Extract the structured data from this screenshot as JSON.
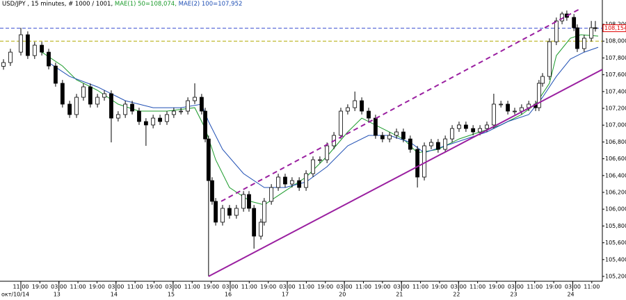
{
  "chart_data": {
    "type": "candlestick",
    "title_parts": [
      {
        "text": "USD/JPY , 15 minutes, # 1000 / 1001,",
        "color": "#000000"
      },
      {
        "text": "MAE(1) 50=108,074,",
        "color": "#1a9a2a"
      },
      {
        "text": "MAE(2) 100=107,952",
        "color": "#1f4fb4"
      }
    ],
    "xlim": [
      -8.77,
      244.44
    ],
    "ylim": [
      105.142,
      108.407
    ],
    "yticks": [
      {
        "value": 105.2,
        "label": "105,200"
      },
      {
        "value": 105.4,
        "label": "105,400"
      },
      {
        "value": 105.6,
        "label": "105,600"
      },
      {
        "value": 105.8,
        "label": "105,800"
      },
      {
        "value": 106.0,
        "label": "106,000"
      },
      {
        "value": 106.2,
        "label": "106,200"
      },
      {
        "value": 106.4,
        "label": "106,400"
      },
      {
        "value": 106.6,
        "label": "106,600"
      },
      {
        "value": 106.8,
        "label": "106,800"
      },
      {
        "value": 107.0,
        "label": "107,000"
      },
      {
        "value": 107.2,
        "label": "107,200"
      },
      {
        "value": 107.4,
        "label": "107,400"
      },
      {
        "value": 107.6,
        "label": "107,600"
      },
      {
        "value": 107.8,
        "label": "107,800"
      },
      {
        "value": 108.0,
        "label": "108,000"
      },
      {
        "value": 108.2,
        "label": "108,200"
      }
    ],
    "xticks": [
      {
        "value": 0,
        "label": "11:00"
      },
      {
        "value": 8,
        "label": "19:00"
      },
      {
        "value": 16,
        "label": "03:00"
      },
      {
        "value": 24,
        "label": "11:00"
      },
      {
        "value": 32,
        "label": "19:00"
      },
      {
        "value": 40,
        "label": "03:00"
      },
      {
        "value": 48,
        "label": "11:00"
      },
      {
        "value": 56,
        "label": "19:00"
      },
      {
        "value": 64,
        "label": "03:00"
      },
      {
        "value": 72,
        "label": "11:00"
      },
      {
        "value": 80,
        "label": "19:00"
      },
      {
        "value": 88,
        "label": "03:00"
      },
      {
        "value": 96,
        "label": "11:00"
      },
      {
        "value": 104,
        "label": "19:00"
      },
      {
        "value": 112,
        "label": "03:00"
      },
      {
        "value": 120,
        "label": "11:00"
      },
      {
        "value": 128,
        "label": "19:00"
      },
      {
        "value": 136,
        "label": "03:00"
      },
      {
        "value": 144,
        "label": "11:00"
      },
      {
        "value": 152,
        "label": "19:00"
      },
      {
        "value": 160,
        "label": "03:00"
      },
      {
        "value": 168,
        "label": "11:00"
      },
      {
        "value": 176,
        "label": "19:00"
      },
      {
        "value": 184,
        "label": "03:00"
      },
      {
        "value": 192,
        "label": "11:00"
      },
      {
        "value": 200,
        "label": "19:00"
      },
      {
        "value": 208,
        "label": "03:00"
      },
      {
        "value": 216,
        "label": "11:00"
      },
      {
        "value": 224,
        "label": "19:00"
      },
      {
        "value": 232,
        "label": "03:00"
      },
      {
        "value": 240,
        "label": "11:00"
      }
    ],
    "date_labels": [
      {
        "value": 0,
        "label": "окт/10/14"
      },
      {
        "value": 16,
        "label": "13"
      },
      {
        "value": 40,
        "label": "14"
      },
      {
        "value": 64,
        "label": "15"
      },
      {
        "value": 88,
        "label": "16"
      },
      {
        "value": 112,
        "label": "17"
      },
      {
        "value": 136,
        "label": "20"
      },
      {
        "value": 160,
        "label": "21"
      },
      {
        "value": 184,
        "label": "22"
      },
      {
        "value": 208,
        "label": "23"
      },
      {
        "value": 232,
        "label": "24"
      }
    ],
    "candles": {
      "up_color": "#ffffff",
      "down_color": "#000000",
      "x": [
        -7.3,
        -4.4,
        0,
        2.9,
        5.8,
        8.8,
        11.7,
        14.6,
        17.5,
        20.5,
        23.4,
        26.3,
        29.2,
        32.2,
        35.1,
        38.0,
        40.9,
        43.9,
        46.8,
        49.7,
        52.6,
        55.6,
        58.5,
        61.4,
        64.3,
        67.3,
        70.2,
        73.1,
        76.0,
        77.5,
        78.9,
        80.4,
        81.9,
        84.8,
        87.7,
        90.6,
        93.6,
        95.9,
        98.0,
        100.9,
        102.3,
        105.3,
        108.2,
        111.1,
        114.0,
        117.0,
        119.9,
        122.8,
        125.7,
        128.7,
        131.6,
        134.5,
        137.4,
        140.4,
        143.3,
        146.2,
        149.1,
        152.0,
        155.0,
        157.9,
        160.8,
        163.7,
        166.7,
        169.6,
        172.5,
        175.4,
        178.4,
        181.3,
        184.2,
        187.1,
        190.1,
        193.0,
        195.9,
        198.8,
        201.8,
        204.7,
        207.6,
        210.5,
        213.5,
        216.4,
        217.8,
        219.3,
        222.2,
        225.1,
        227.5,
        229.5,
        232.5,
        233.9,
        236.8,
        239.8,
        241.5
      ],
      "open": [
        107.7,
        107.745,
        107.869,
        108.076,
        107.828,
        107.952,
        107.869,
        107.704,
        107.498,
        107.25,
        107.126,
        107.332,
        107.456,
        107.25,
        107.332,
        107.374,
        107.084,
        107.126,
        107.25,
        107.167,
        107.043,
        107.002,
        107.084,
        107.043,
        107.126,
        107.167,
        107.167,
        107.291,
        107.332,
        107.167,
        106.836,
        106.34,
        106.093,
        105.845,
        106.01,
        105.927,
        106.01,
        106.175,
        106.01,
        105.679,
        105.845,
        106.093,
        106.258,
        106.382,
        106.299,
        106.34,
        106.258,
        106.423,
        106.588,
        106.588,
        106.754,
        106.878,
        107.167,
        107.208,
        107.291,
        107.167,
        107.084,
        106.878,
        106.836,
        106.878,
        106.919,
        106.836,
        106.712,
        106.382,
        106.754,
        106.795,
        106.712,
        106.836,
        106.96,
        107.002,
        106.96,
        106.919,
        106.96,
        107.002,
        107.25,
        107.25,
        107.167,
        107.167,
        107.208,
        107.25,
        107.208,
        107.498,
        107.58,
        107.993,
        108.241,
        108.324,
        108.283,
        108.159,
        107.911,
        108.035,
        108.159
      ],
      "high": [
        107.785,
        107.909,
        108.159,
        108.116,
        107.992,
        107.992,
        107.909,
        107.744,
        107.538,
        107.29,
        107.372,
        107.496,
        107.496,
        107.372,
        107.414,
        107.414,
        107.166,
        107.29,
        107.29,
        107.207,
        107.083,
        107.124,
        107.124,
        107.166,
        107.207,
        107.207,
        107.331,
        107.498,
        107.372,
        107.207,
        106.876,
        106.38,
        106.133,
        106.05,
        106.05,
        106.05,
        106.215,
        106.215,
        106.05,
        105.885,
        106.133,
        106.298,
        106.422,
        106.422,
        106.38,
        106.38,
        106.463,
        106.628,
        106.628,
        106.794,
        106.918,
        107.207,
        107.248,
        107.4,
        107.331,
        107.207,
        107.124,
        106.918,
        106.918,
        106.959,
        106.959,
        106.876,
        106.752,
        106.794,
        106.835,
        106.835,
        106.876,
        107.0,
        107.042,
        107.042,
        107.0,
        107.0,
        107.042,
        107.374,
        107.29,
        107.29,
        107.207,
        107.248,
        107.29,
        107.29,
        107.538,
        107.62,
        108.033,
        108.281,
        108.35,
        108.364,
        108.323,
        108.199,
        108.075,
        108.24,
        108.24
      ],
      "low": [
        107.66,
        107.705,
        107.829,
        107.788,
        107.788,
        107.829,
        107.664,
        107.458,
        107.21,
        107.086,
        107.086,
        107.292,
        107.21,
        107.21,
        107.292,
        106.795,
        107.044,
        107.086,
        107.127,
        107.003,
        106.754,
        106.962,
        107.003,
        107.003,
        107.086,
        107.127,
        107.127,
        107.251,
        107.127,
        106.796,
        105.2,
        106.053,
        105.805,
        105.805,
        105.887,
        105.887,
        105.97,
        105.97,
        105.53,
        105.639,
        105.805,
        106.053,
        106.218,
        106.259,
        106.259,
        106.218,
        106.218,
        106.383,
        106.548,
        106.548,
        106.714,
        106.838,
        107.127,
        107.168,
        107.127,
        107.044,
        106.838,
        106.796,
        106.796,
        106.838,
        106.796,
        106.672,
        106.258,
        106.342,
        106.714,
        106.672,
        106.672,
        106.796,
        106.92,
        106.92,
        106.879,
        106.879,
        106.92,
        106.962,
        107.21,
        107.127,
        107.127,
        107.127,
        107.168,
        107.168,
        107.168,
        107.458,
        107.54,
        107.953,
        108.201,
        108.243,
        108.119,
        107.871,
        107.871,
        107.995,
        108.114
      ],
      "close": [
        107.745,
        107.869,
        108.076,
        107.828,
        107.952,
        107.869,
        107.704,
        107.498,
        107.25,
        107.126,
        107.332,
        107.456,
        107.25,
        107.332,
        107.374,
        107.084,
        107.126,
        107.25,
        107.167,
        107.043,
        107.002,
        107.084,
        107.043,
        107.126,
        107.167,
        107.167,
        107.291,
        107.332,
        107.167,
        106.836,
        106.34,
        106.093,
        105.845,
        106.01,
        105.927,
        106.01,
        106.175,
        106.01,
        105.679,
        105.845,
        106.093,
        106.258,
        106.382,
        106.299,
        106.34,
        106.258,
        106.423,
        106.588,
        106.588,
        106.754,
        106.878,
        107.167,
        107.208,
        107.291,
        107.167,
        107.084,
        106.878,
        106.836,
        106.878,
        106.919,
        106.836,
        106.712,
        106.382,
        106.754,
        106.795,
        106.712,
        106.836,
        106.96,
        107.002,
        106.96,
        106.919,
        106.96,
        107.002,
        107.25,
        107.25,
        107.167,
        107.167,
        107.208,
        107.25,
        107.208,
        107.498,
        107.58,
        107.993,
        108.241,
        108.324,
        108.283,
        108.159,
        107.911,
        108.035,
        108.159,
        108.154
      ]
    },
    "lines": [
      {
        "color": "#1a9a2a",
        "x": [
          8.8,
          17.5,
          23.4,
          32.2,
          40.9,
          49.7,
          61.4,
          73.1,
          77.5,
          81.9,
          87.7,
          96.5,
          102.3,
          111.1,
          119.9,
          128.7,
          137.4,
          143.3,
          152.0,
          160.8,
          166.7,
          175.4,
          184.2,
          193.0,
          201.8,
          210.5,
          216.4,
          222.2,
          225.1,
          231.0,
          235.4,
          242.7
        ],
        "values": [
          107.869,
          107.704,
          107.539,
          107.415,
          107.25,
          107.167,
          107.167,
          107.208,
          106.96,
          106.588,
          106.258,
          106.093,
          106.051,
          106.217,
          106.382,
          106.63,
          106.919,
          107.084,
          106.96,
          106.836,
          106.671,
          106.712,
          106.836,
          106.919,
          107.002,
          107.126,
          107.25,
          107.498,
          107.828,
          108.035,
          108.076,
          108.06
        ]
      },
      {
        "color": "#1f4fb4",
        "x": [
          11.7,
          20.5,
          32.2,
          43.9,
          55.6,
          67.3,
          76.0,
          78.9,
          84.8,
          93.6,
          102.3,
          111.1,
          119.9,
          128.7,
          137.4,
          146.2,
          155.0,
          163.7,
          169.6,
          178.4,
          187.1,
          195.9,
          204.7,
          213.5,
          219.3,
          225.1,
          231.0,
          236.8,
          242.7
        ],
        "values": [
          107.745,
          107.58,
          107.456,
          107.291,
          107.208,
          107.208,
          107.25,
          107.043,
          106.712,
          106.423,
          106.258,
          106.258,
          106.324,
          106.506,
          106.754,
          106.878,
          106.878,
          106.795,
          106.671,
          106.754,
          106.836,
          106.919,
          107.043,
          107.126,
          107.332,
          107.58,
          107.787,
          107.869,
          107.927
        ]
      }
    ],
    "trendlines": [
      {
        "color": "#9a1fa0",
        "dashed": false,
        "x": [
          78.9,
          244.44
        ],
        "values": [
          105.2,
          107.663
        ]
      },
      {
        "color": "#9a1fa0",
        "dashed": true,
        "x": [
          84.2,
          235.4
        ],
        "values": [
          106.093,
          108.39
        ]
      }
    ],
    "hlines": [
      {
        "value": 108.154,
        "color": "#3a4fd0",
        "label": "108,154",
        "label_color": "#e00000"
      },
      {
        "value": 108.0,
        "color": "#b0a800"
      }
    ]
  }
}
